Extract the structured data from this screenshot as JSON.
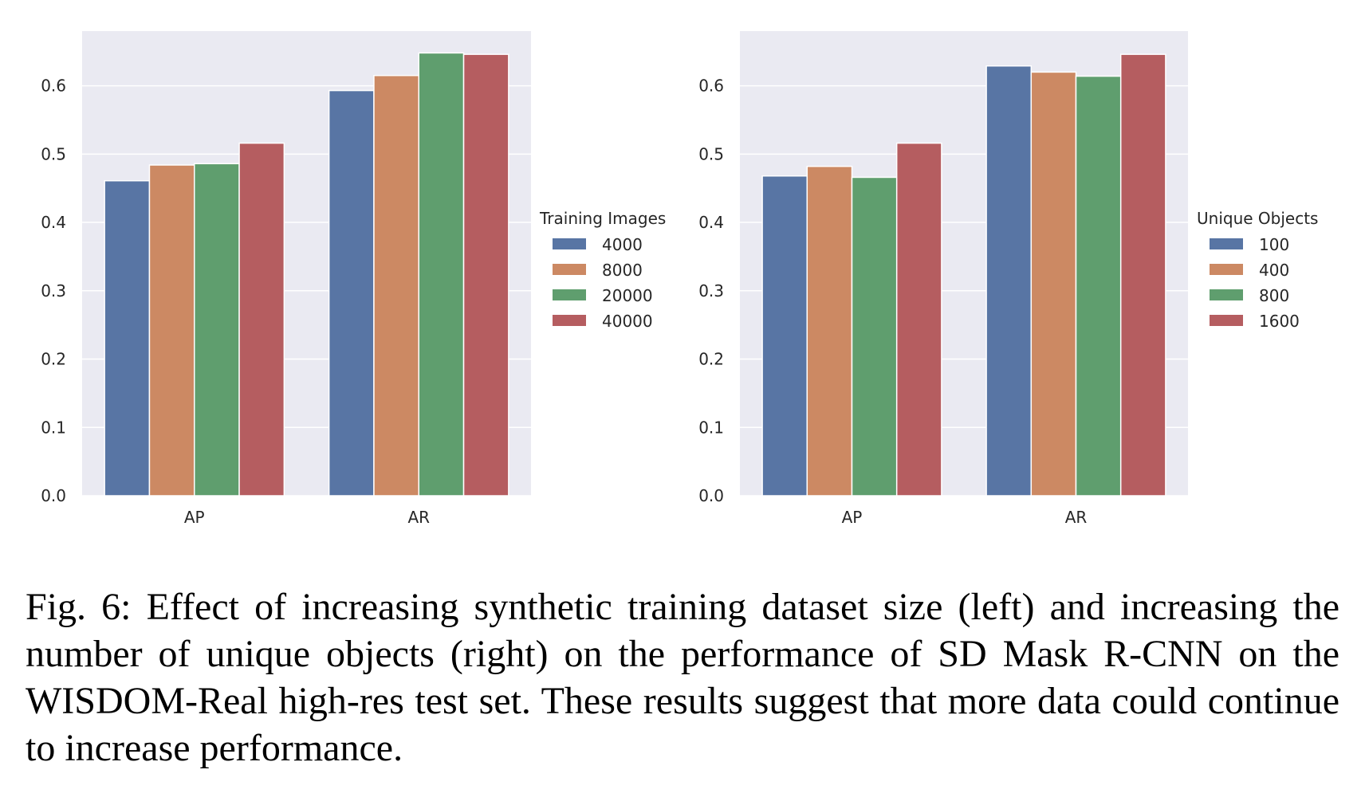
{
  "colors": {
    "axes_bg": "#eaeaf2",
    "grid": "#ffffff",
    "series": [
      "#5875a4",
      "#cc8963",
      "#5f9e6e",
      "#b55d60"
    ]
  },
  "chart_data": [
    {
      "type": "bar",
      "categories": [
        "AP",
        "AR"
      ],
      "ylim": [
        0,
        0.68
      ],
      "yticks": [
        "0.0",
        "0.1",
        "0.2",
        "0.3",
        "0.4",
        "0.5",
        "0.6"
      ],
      "grid": true,
      "legend_title": "Training Images",
      "legend_position": "right",
      "series": [
        {
          "name": "4000",
          "values": [
            0.461,
            0.593
          ]
        },
        {
          "name": "8000",
          "values": [
            0.484,
            0.615
          ]
        },
        {
          "name": "20000",
          "values": [
            0.486,
            0.648
          ]
        },
        {
          "name": "40000",
          "values": [
            0.516,
            0.646
          ]
        }
      ]
    },
    {
      "type": "bar",
      "categories": [
        "AP",
        "AR"
      ],
      "ylim": [
        0,
        0.68
      ],
      "yticks": [
        "0.0",
        "0.1",
        "0.2",
        "0.3",
        "0.4",
        "0.5",
        "0.6"
      ],
      "grid": true,
      "legend_title": "Unique Objects",
      "legend_position": "right",
      "series": [
        {
          "name": "100",
          "values": [
            0.468,
            0.629
          ]
        },
        {
          "name": "400",
          "values": [
            0.482,
            0.62
          ]
        },
        {
          "name": "800",
          "values": [
            0.466,
            0.614
          ]
        },
        {
          "name": "1600",
          "values": [
            0.516,
            0.646
          ]
        }
      ]
    }
  ],
  "caption": "Fig. 6: Effect of increasing synthetic training dataset size (left) and increasing the number of unique objects (right) on the performance of SD Mask R-CNN on the WISDOM-Real high-res test set. These results suggest that more data could continue to increase performance."
}
